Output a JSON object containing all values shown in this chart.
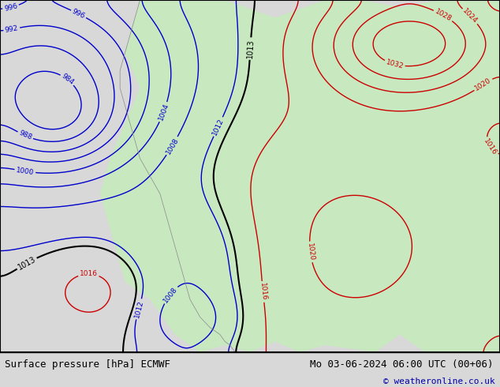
{
  "title_left": "Surface pressure [hPa] ECMWF",
  "title_right": "Mo 03-06-2024 06:00 UTC (00+06)",
  "copyright": "© weatheronline.co.uk",
  "bg_color": "#d8d8d8",
  "land_color": "#c8e8c0",
  "ocean_color": "#d8d8d8",
  "blue_contour_color": "#0000cc",
  "red_contour_color": "#cc0000",
  "black_contour_color": "#000000",
  "text_color_bottom": "#000000",
  "copyright_color": "#0000aa",
  "bottom_bar_color": "#e8e8e8",
  "figsize": [
    6.34,
    4.9
  ],
  "dpi": 100
}
